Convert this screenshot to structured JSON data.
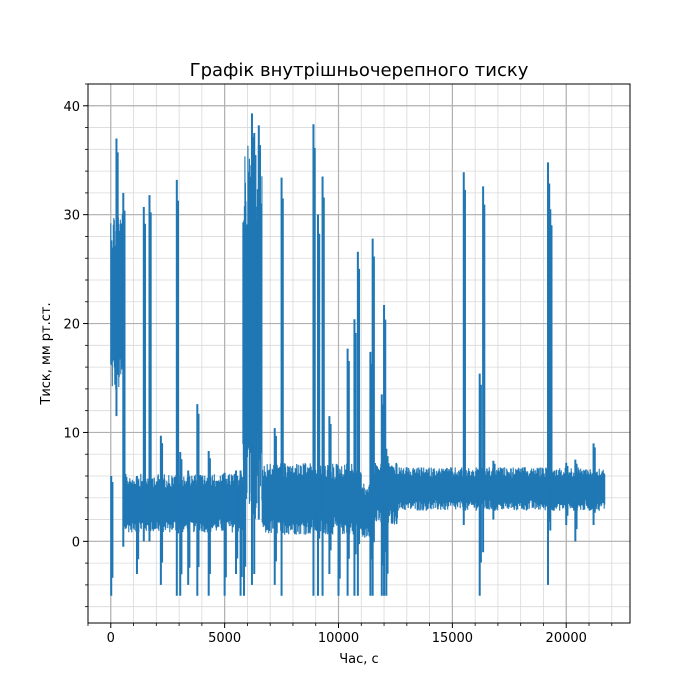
{
  "chart_data": {
    "type": "line",
    "title": "Графік внутрішньочерепного тиску",
    "xlabel": "Час, с",
    "ylabel": "Тиск, мм рт.ст.",
    "xlim": [
      -1000,
      22800
    ],
    "ylim": [
      -7.5,
      42
    ],
    "x_ticks": [
      0,
      5000,
      10000,
      15000,
      20000
    ],
    "y_ticks": [
      0,
      10,
      20,
      30,
      40
    ],
    "x_minor_step": 1000,
    "y_minor_step": 2,
    "grid": true,
    "series_color": "#1f77b4",
    "series": [
      {
        "x_range": [
          0,
          21700
        ],
        "baseline_band": [
          {
            "x0": 0,
            "x1": 550,
            "low": 13.5,
            "high": 30.5
          },
          {
            "x0": 550,
            "x1": 5800,
            "low": 0.8,
            "high": 6.2
          },
          {
            "x0": 5800,
            "x1": 6650,
            "low": 2.0,
            "high": 36.5
          },
          {
            "x0": 6650,
            "x1": 11000,
            "low": 0.6,
            "high": 7.2
          },
          {
            "x0": 11000,
            "x1": 11400,
            "low": 0.3,
            "high": 5.3
          },
          {
            "x0": 11400,
            "x1": 12600,
            "low": 1.5,
            "high": 7.3
          },
          {
            "x0": 12600,
            "x1": 21700,
            "low": 2.8,
            "high": 6.8
          }
        ],
        "spikes": [
          {
            "x": 20,
            "min": -5,
            "max": 6
          },
          {
            "x": 250,
            "min": 11.5,
            "max": 37
          },
          {
            "x": 550,
            "min": -0.5,
            "max": 32
          },
          {
            "x": 1150,
            "min": -3,
            "max": 6
          },
          {
            "x": 1450,
            "min": 0,
            "max": 30.7
          },
          {
            "x": 1700,
            "min": 0,
            "max": 31.8
          },
          {
            "x": 2200,
            "min": -4,
            "max": 9.7
          },
          {
            "x": 2900,
            "min": -5,
            "max": 33.2
          },
          {
            "x": 3050,
            "min": -5,
            "max": 8.2
          },
          {
            "x": 3400,
            "min": -4,
            "max": 6.5
          },
          {
            "x": 3800,
            "min": -5,
            "max": 12.6
          },
          {
            "x": 4300,
            "min": -5,
            "max": 8.3
          },
          {
            "x": 5000,
            "min": -5,
            "max": 6.3
          },
          {
            "x": 5500,
            "min": -3,
            "max": 6.5
          },
          {
            "x": 5700,
            "min": -5,
            "max": 6.5
          },
          {
            "x": 5850,
            "min": -5,
            "max": 12.8
          },
          {
            "x": 6200,
            "min": -4,
            "max": 39.3
          },
          {
            "x": 6300,
            "min": -3,
            "max": 37.5
          },
          {
            "x": 6500,
            "min": 2,
            "max": 38.2
          },
          {
            "x": 7200,
            "min": -4,
            "max": 10.4
          },
          {
            "x": 7500,
            "min": -5,
            "max": 33.4
          },
          {
            "x": 8900,
            "min": -5,
            "max": 38.3
          },
          {
            "x": 9100,
            "min": -5,
            "max": 30.0
          },
          {
            "x": 9300,
            "min": -5,
            "max": 33.5
          },
          {
            "x": 9600,
            "min": -3,
            "max": 11.5
          },
          {
            "x": 10000,
            "min": -5,
            "max": 5.5
          },
          {
            "x": 10400,
            "min": -5,
            "max": 17.7
          },
          {
            "x": 10700,
            "min": -5,
            "max": 20.4
          },
          {
            "x": 10850,
            "min": -5,
            "max": 26.6
          },
          {
            "x": 11400,
            "min": -5,
            "max": 17.4
          },
          {
            "x": 11500,
            "min": -5,
            "max": 27.8
          },
          {
            "x": 11900,
            "min": -5,
            "max": 13.5
          },
          {
            "x": 12000,
            "min": -5,
            "max": 21.7
          },
          {
            "x": 12100,
            "min": -5,
            "max": 8.5
          },
          {
            "x": 15500,
            "min": 1.5,
            "max": 33.9
          },
          {
            "x": 16200,
            "min": -5,
            "max": 15.4
          },
          {
            "x": 16350,
            "min": -1,
            "max": 32.6
          },
          {
            "x": 16800,
            "min": 2,
            "max": 7.4
          },
          {
            "x": 19200,
            "min": -4,
            "max": 34.8
          },
          {
            "x": 19300,
            "min": 1,
            "max": 30.5
          },
          {
            "x": 20000,
            "min": 1.5,
            "max": 7.2
          },
          {
            "x": 20400,
            "min": 0,
            "max": 7.5
          },
          {
            "x": 21200,
            "min": 1.5,
            "max": 9.0
          }
        ]
      }
    ]
  }
}
